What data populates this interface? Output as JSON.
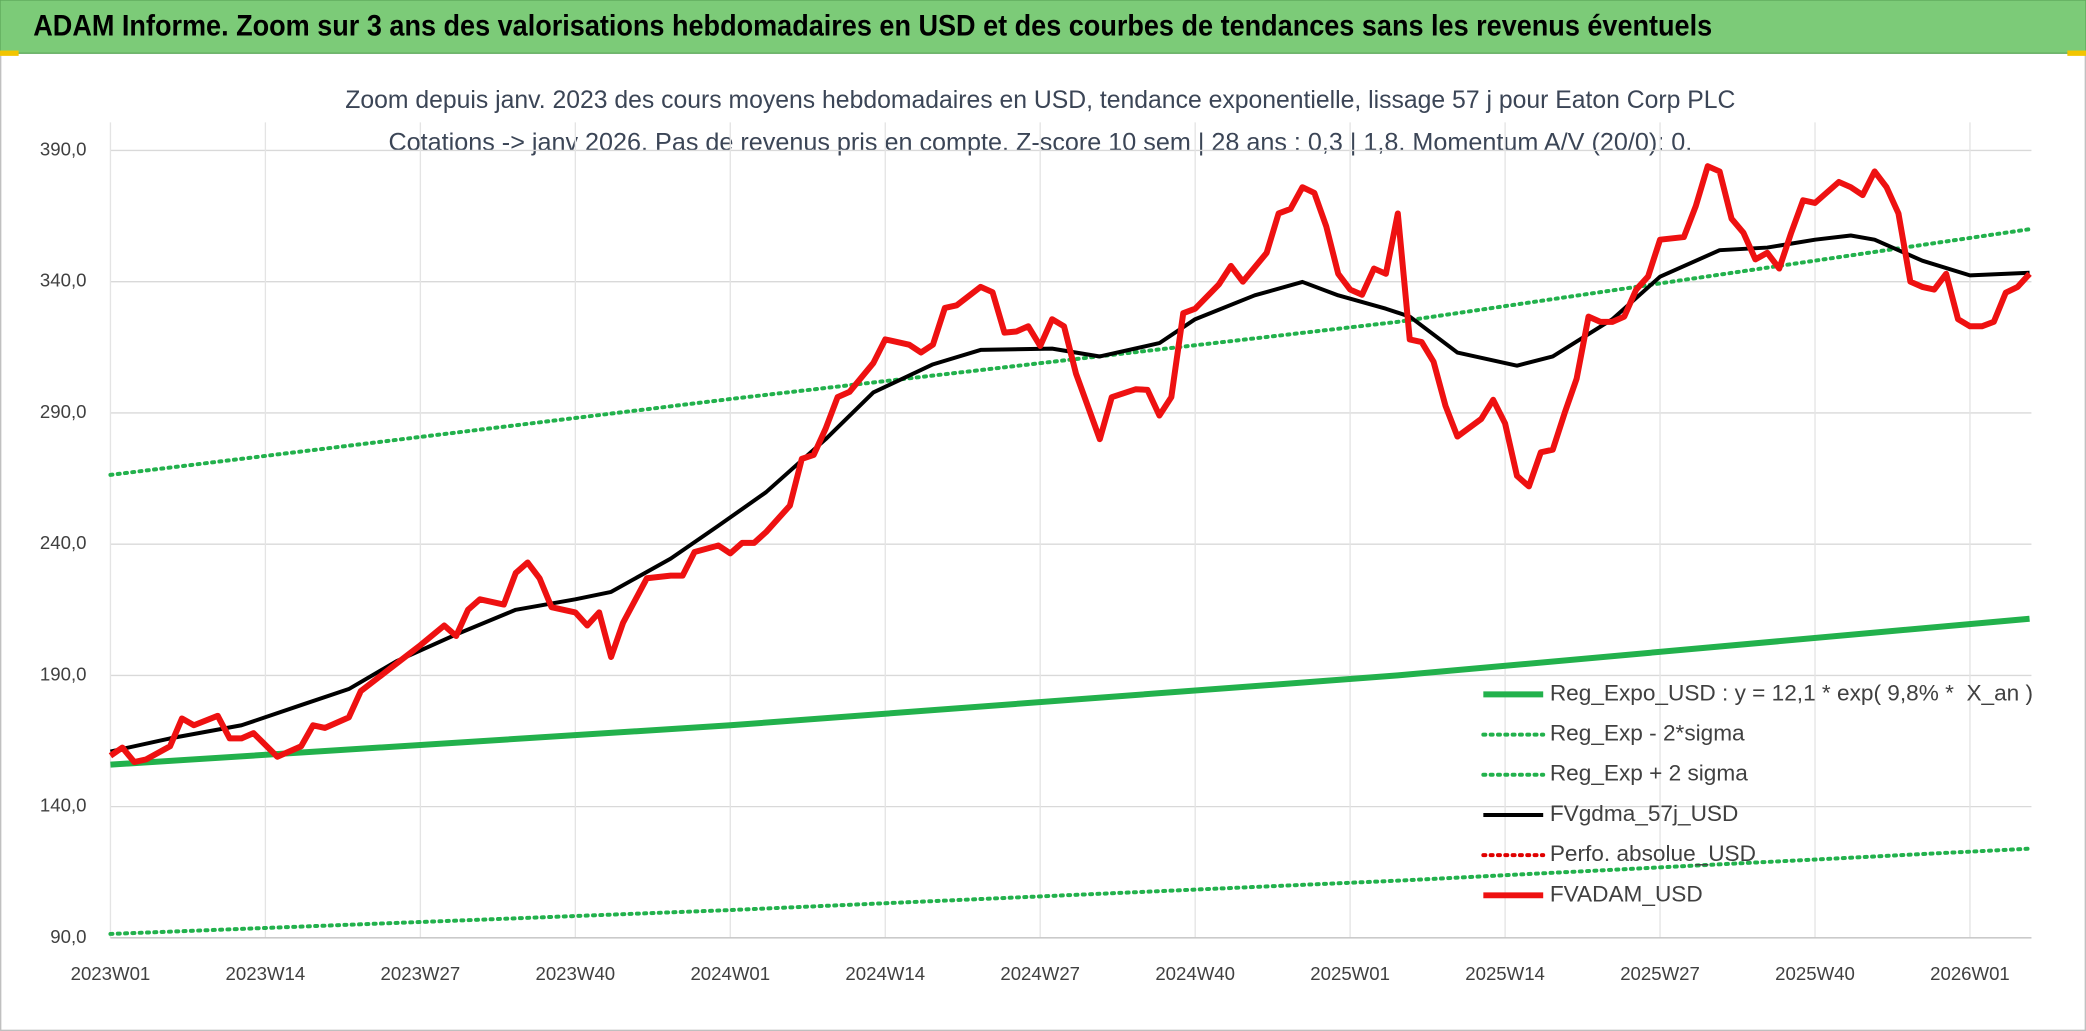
{
  "chart_data": {
    "type": "line",
    "title": "ADAM Informe. Zoom sur 3 ans des valorisations hebdomadaires en USD et des courbes de tendances sans les revenus éventuels",
    "subtitle": [
      "Zoom depuis janv. 2023 des cours moyens hebdomadaires en USD, tendance exponentielle, lissage 57 j pour Eaton Corp PLC",
      "Cotations -> janv 2026. Pas de revenus pris en compte. Z-score 10 sem | 28 ans : 0,3 | 1,8. Momentum A/V (20/0): 0."
    ],
    "xlim": [
      0,
      161
    ],
    "xticks": [
      {
        "value": 0,
        "label": "2023W01"
      },
      {
        "value": 13,
        "label": "2023W14"
      },
      {
        "value": 26,
        "label": "2023W27"
      },
      {
        "value": 39,
        "label": "2023W40"
      },
      {
        "value": 52,
        "label": "2024W01"
      },
      {
        "value": 65,
        "label": "2024W14"
      },
      {
        "value": 78,
        "label": "2024W27"
      },
      {
        "value": 91,
        "label": "2024W40"
      },
      {
        "value": 104,
        "label": "2025W01"
      },
      {
        "value": 117,
        "label": "2025W14"
      },
      {
        "value": 130,
        "label": "2025W27"
      },
      {
        "value": 143,
        "label": "2025W40"
      },
      {
        "value": 156,
        "label": "2026W01"
      }
    ],
    "ylim": [
      90,
      398
    ],
    "yticks": [
      {
        "value": 90,
        "label": "90,0"
      },
      {
        "value": 140,
        "label": "140,0"
      },
      {
        "value": 190,
        "label": "190,0"
      },
      {
        "value": 240,
        "label": "240,0"
      },
      {
        "value": 290,
        "label": "290,0"
      },
      {
        "value": 340,
        "label": "340,0"
      },
      {
        "value": 390,
        "label": "390,0"
      }
    ],
    "grid": true,
    "legend": "lower right",
    "series": [
      {
        "name": "Reg_Expo_USD : y = 12,1 * exp( 9,8% *  X_an )",
        "color": "#22b14c",
        "line_style": "thick",
        "x": [
          0,
          52,
          108,
          161
        ],
        "values": [
          156,
          171,
          190,
          211.6
        ]
      },
      {
        "name": "Reg_Exp - 2*sigma",
        "color": "#22b14c",
        "line_style": "dotted",
        "x": [
          0,
          52,
          108,
          161
        ],
        "values": [
          91.5,
          100.6,
          111.8,
          124
        ]
      },
      {
        "name": "Reg_Exp + 2 sigma",
        "color": "#22b14c",
        "line_style": "dotted",
        "x": [
          0,
          52,
          108,
          161
        ],
        "values": [
          266.4,
          295.3,
          324.7,
          360
        ]
      },
      {
        "name": "FVgdma_57j_USD",
        "color": "#000000",
        "line_style": "solid",
        "x": [
          0,
          5,
          11,
          16,
          20,
          24,
          29,
          34,
          39,
          42,
          47,
          51,
          55,
          60,
          64,
          69,
          73,
          79,
          83,
          88,
          91,
          96,
          100,
          103,
          107,
          109,
          113,
          118,
          121,
          126,
          130,
          135,
          139,
          143,
          146,
          148,
          152,
          156,
          161
        ],
        "values": [
          161,
          166,
          171,
          178.7,
          184.8,
          195.4,
          205.6,
          215,
          219,
          221.8,
          234.5,
          247,
          259.8,
          280,
          297.8,
          308.5,
          314,
          314.5,
          311.5,
          316.6,
          325.7,
          334.8,
          339.9,
          334.8,
          329.7,
          326.7,
          313,
          308,
          311.5,
          325.7,
          341.9,
          352,
          353,
          356,
          357.6,
          356,
          348,
          342.4,
          343.4
        ]
      },
      {
        "name": "Perfo. absolue_USD",
        "color": "#e00000",
        "line_style": "dotted",
        "x": [],
        "values": []
      },
      {
        "name": "FVADAM_USD",
        "color": "#ee1111",
        "line_style": "thick",
        "x": [
          0,
          1,
          2,
          3,
          5,
          6,
          7,
          9,
          10,
          11,
          12,
          14,
          16,
          17,
          18,
          20,
          21,
          23,
          25,
          26,
          28,
          29,
          30,
          31,
          33,
          34,
          35,
          36,
          37,
          39,
          40,
          41,
          42,
          43,
          45,
          47,
          48,
          49,
          51,
          52,
          53,
          54,
          55,
          57,
          58,
          59,
          60,
          61,
          62,
          64,
          65,
          67,
          68,
          69,
          70,
          71,
          73,
          74,
          75,
          76,
          77,
          78,
          79,
          80,
          81,
          83,
          84,
          86,
          87,
          88,
          89,
          90,
          91,
          93,
          94,
          95,
          97,
          98,
          99,
          100,
          101,
          102,
          103,
          104,
          105,
          106,
          107,
          108,
          109,
          110,
          111,
          112,
          113,
          115,
          116,
          117,
          118,
          119,
          120,
          121,
          122,
          123,
          124,
          125,
          126,
          127,
          128,
          129,
          130,
          132,
          133,
          134,
          135,
          136,
          137,
          138,
          139,
          140,
          141,
          142,
          143,
          145,
          146,
          147,
          148,
          149,
          150,
          151,
          152,
          153,
          154,
          155,
          156,
          157,
          158,
          159,
          160,
          161
        ],
        "values": [
          159.4,
          162.5,
          157,
          158,
          163,
          173.6,
          171,
          174.6,
          166,
          166,
          168,
          159,
          163,
          171,
          170,
          174,
          184,
          191,
          198,
          201.5,
          209,
          205,
          215,
          219,
          217,
          229,
          233,
          227,
          216,
          214,
          209,
          214,
          197,
          210,
          227,
          228,
          228,
          237,
          239.5,
          236.5,
          240.5,
          240.5,
          244.6,
          254.7,
          272.5,
          274,
          284,
          296,
          298,
          309,
          318,
          316,
          313,
          316,
          330,
          331,
          338,
          336,
          320.6,
          321,
          323,
          315.5,
          325.7,
          323,
          305,
          280,
          296,
          299,
          298.8,
          289,
          296,
          328,
          329.7,
          339,
          346,
          340,
          351,
          366,
          367.7,
          376,
          373.8,
          361,
          343,
          337,
          335,
          345,
          343,
          366,
          318,
          317,
          309.5,
          292.7,
          281,
          287.7,
          295,
          286,
          266,
          262,
          275,
          276,
          290,
          303,
          326.7,
          324.7,
          324.7,
          326.7,
          337,
          342,
          356,
          357,
          368.8,
          384,
          382,
          364,
          358.6,
          348.5,
          351,
          345,
          358.6,
          371,
          370,
          378,
          376,
          373,
          382,
          376,
          366,
          340,
          338,
          337,
          343,
          325.7,
          323,
          323,
          324.7,
          335.8,
          338,
          343
        ]
      }
    ]
  }
}
